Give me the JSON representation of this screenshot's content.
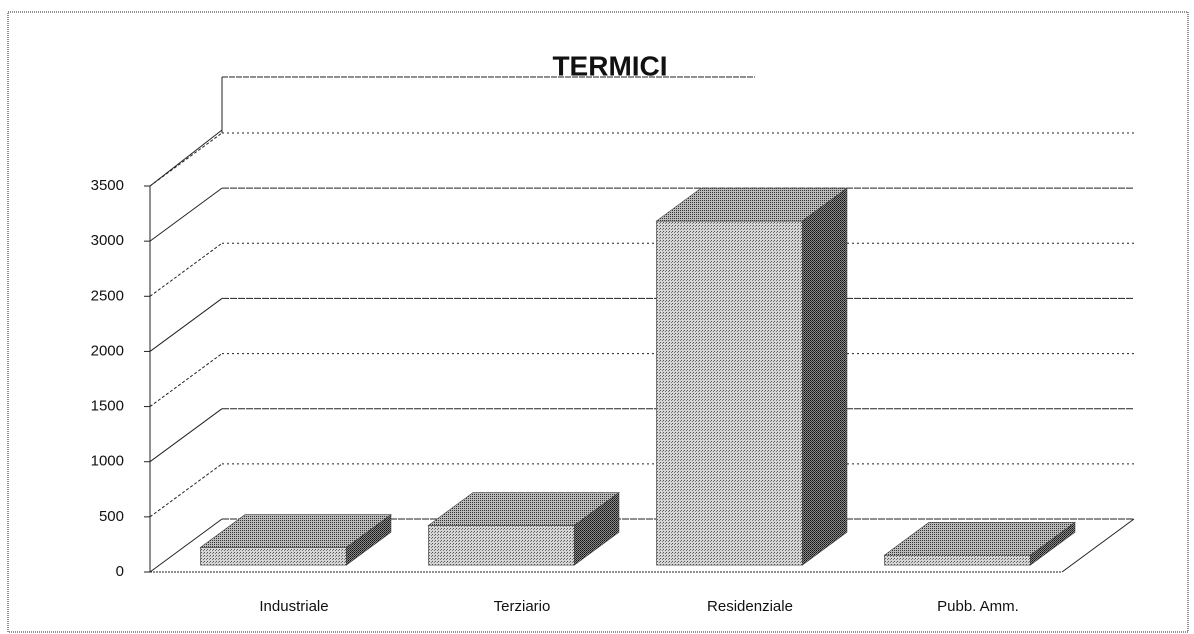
{
  "chart_data": {
    "type": "bar3d",
    "title": "TERMICI",
    "categories": [
      "Industriale",
      "Terziario",
      "Residenziale",
      "Pubb. Amm."
    ],
    "values": [
      160,
      360,
      3120,
      90
    ],
    "color": "#b8b8b8",
    "ylim": [
      0,
      3500
    ],
    "yticks": [
      0,
      500,
      1000,
      1500,
      2000,
      2500,
      3000,
      3500
    ],
    "grid": true
  }
}
